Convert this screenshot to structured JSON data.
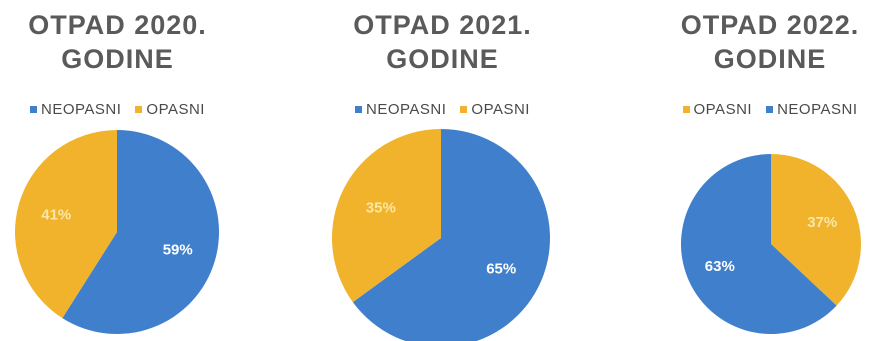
{
  "colors": {
    "neopasni": "#3f7fcc",
    "opasni": "#f0b32b",
    "title": "#5a5a5a"
  },
  "chart_data": [
    {
      "type": "pie",
      "title_line1": "OTPAD 2020.",
      "title_line2": "GODINE",
      "legend": [
        "NEOPASNI",
        "OPASNI"
      ],
      "legend_placement": "top",
      "slices": [
        {
          "name": "NEOPASNI",
          "value": 59,
          "label": "59%",
          "color": "#3f7fcc"
        },
        {
          "name": "OPASNI",
          "value": 41,
          "label": "41%",
          "color": "#f0b32b"
        }
      ]
    },
    {
      "type": "pie",
      "title_line1": "OTPAD 2021.",
      "title_line2": "GODINE",
      "legend": [
        "NEOPASNI",
        "OPASNI"
      ],
      "legend_placement": "top",
      "slices": [
        {
          "name": "NEOPASNI",
          "value": 65,
          "label": "65%",
          "color": "#3f7fcc"
        },
        {
          "name": "OPASNI",
          "value": 35,
          "label": "35%",
          "color": "#f0b32b"
        }
      ]
    },
    {
      "type": "pie",
      "title_line1": "OTPAD 2022.",
      "title_line2": "GODINE",
      "legend": [
        "OPASNI",
        "NEOPASNI"
      ],
      "legend_placement": "top",
      "slices": [
        {
          "name": "OPASNI",
          "value": 37,
          "label": "37%",
          "color": "#f0b32b"
        },
        {
          "name": "NEOPASNI",
          "value": 63,
          "label": "63%",
          "color": "#3f7fcc"
        }
      ]
    }
  ]
}
